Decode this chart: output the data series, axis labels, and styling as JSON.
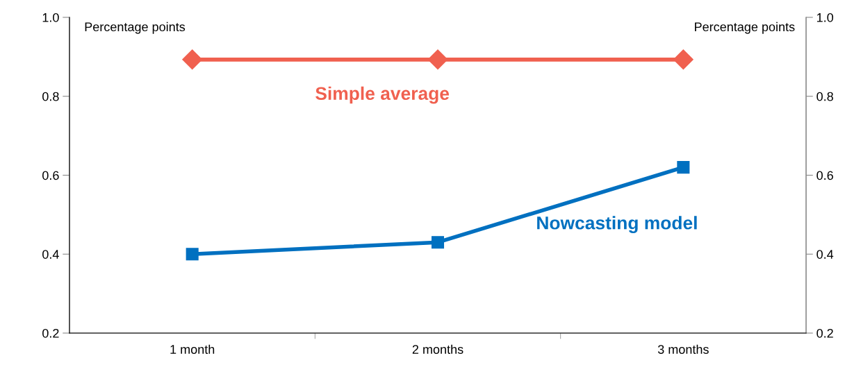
{
  "chart_data": {
    "type": "line",
    "categories": [
      "1 month",
      "2 months",
      "3 months"
    ],
    "series": [
      {
        "name": "Simple average",
        "color": "#f0604f",
        "marker": "diamond",
        "values": [
          0.893,
          0.893,
          0.893
        ]
      },
      {
        "name": "Nowcasting model",
        "color": "#0070c0",
        "marker": "square",
        "values": [
          0.4,
          0.43,
          0.62
        ]
      }
    ],
    "ylabel": "Percentage points",
    "y2label": "Percentage points",
    "ylim": [
      0.2,
      1.0
    ],
    "yticks": [
      {
        "value": 0.2,
        "label": "0.2"
      },
      {
        "value": 0.4,
        "label": "0.4"
      },
      {
        "value": 0.6,
        "label": "0.6"
      },
      {
        "value": 0.8,
        "label": "0.8"
      },
      {
        "value": 1.0,
        "label": "1.0"
      }
    ],
    "y2lim": [
      0.2,
      1.0
    ],
    "y2ticks": [
      {
        "value": 0.2,
        "label": "0.2"
      },
      {
        "value": 0.4,
        "label": "0.4"
      },
      {
        "value": 0.6,
        "label": "0.6"
      },
      {
        "value": 0.8,
        "label": "0.8"
      },
      {
        "value": 1.0,
        "label": "1.0"
      }
    ],
    "grid": false,
    "legend": false,
    "line_style": "solid"
  }
}
